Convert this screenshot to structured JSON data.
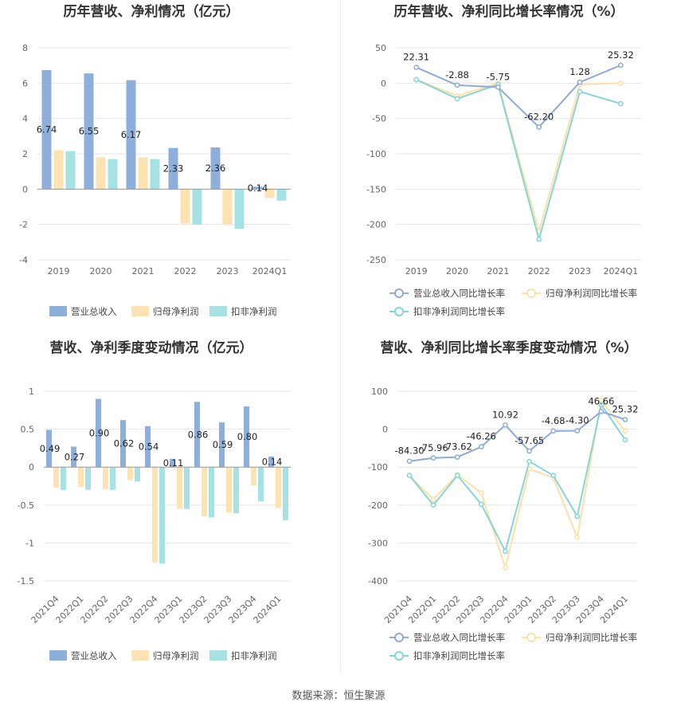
{
  "colors": {
    "revenue": "#8eafdc",
    "net_profit": "#fde2b2",
    "deducted_profit": "#a6e1e3",
    "revenue_line": "#8eaad8",
    "net_line": "#fde0a8",
    "deducted_line": "#86d5d6"
  },
  "source": "数据来源：恒生聚源",
  "chart_data": [
    {
      "type": "bar",
      "title": "历年营收、净利情况（亿元）",
      "categories": [
        "2019",
        "2020",
        "2021",
        "2022",
        "2023",
        "2024Q1"
      ],
      "ylim": [
        -4,
        8
      ],
      "yticks": [
        "8",
        "6",
        "4",
        "2",
        "0",
        "-2",
        "-4"
      ],
      "series": [
        {
          "name": "营业总收入",
          "values": [
            6.74,
            6.55,
            6.17,
            2.33,
            2.36,
            0.14
          ]
        },
        {
          "name": "归母净利润",
          "values": [
            2.2,
            1.8,
            1.8,
            -1.95,
            -2.0,
            -0.5
          ]
        },
        {
          "name": "扣非净利润",
          "values": [
            2.15,
            1.7,
            1.7,
            -2.0,
            -2.25,
            -0.65
          ]
        }
      ],
      "data_labels": [
        "6.74",
        "6.55",
        "6.17",
        "2.33",
        "2.36",
        "0.14"
      ]
    },
    {
      "type": "line",
      "title": "历年营收、净利同比增长率情况（%）",
      "categories": [
        "2019",
        "2020",
        "2021",
        "2022",
        "2023",
        "2024Q1"
      ],
      "ylim": [
        -250,
        50
      ],
      "yticks": [
        "50",
        "0",
        "-50",
        "-100",
        "-150",
        "-200",
        "-250"
      ],
      "series": [
        {
          "name": "营业总收入同比增长率",
          "values": [
            22.31,
            -2.88,
            -5.75,
            -62.2,
            1.28,
            25.32
          ]
        },
        {
          "name": "归母净利润同比增长率",
          "values": [
            5,
            -18,
            0,
            -210,
            -2,
            0
          ]
        },
        {
          "name": "扣非净利润同比增长率",
          "values": [
            5,
            -22,
            -2,
            -221,
            -12,
            -29
          ]
        }
      ],
      "data_labels": [
        "22.31",
        "-2.88",
        "-5.75",
        "-62.20",
        "1.28",
        "25.32"
      ]
    },
    {
      "type": "bar",
      "title": "营收、净利季度变动情况（亿元）",
      "categories": [
        "2021Q4",
        "2022Q1",
        "2022Q2",
        "2022Q3",
        "2022Q4",
        "2023Q1",
        "2023Q2",
        "2023Q3",
        "2023Q4",
        "2024Q1"
      ],
      "ylim": [
        -1.5,
        1
      ],
      "yticks": [
        "1",
        "0.5",
        "0",
        "-0.5",
        "-1",
        "-1.5"
      ],
      "series": [
        {
          "name": "营业总收入",
          "values": [
            0.49,
            0.27,
            0.9,
            0.62,
            0.54,
            0.11,
            0.86,
            0.59,
            0.8,
            0.14
          ]
        },
        {
          "name": "归母净利润",
          "values": [
            -0.27,
            -0.26,
            -0.29,
            -0.17,
            -1.26,
            -0.55,
            -0.65,
            -0.6,
            -0.24,
            -0.54
          ]
        },
        {
          "name": "扣非净利润",
          "values": [
            -0.3,
            -0.3,
            -0.3,
            -0.19,
            -1.27,
            -0.55,
            -0.66,
            -0.61,
            -0.45,
            -0.7
          ]
        }
      ],
      "data_labels": [
        "0.49",
        "0.27",
        "0.90",
        "0.62",
        "0.54",
        "0.11",
        "0.86",
        "0.59",
        "0.80",
        "0.14"
      ]
    },
    {
      "type": "line",
      "title": "营收、净利同比增长率季度变动情况（%）",
      "categories": [
        "2021Q4",
        "2022Q1",
        "2022Q2",
        "2022Q3",
        "2022Q4",
        "2023Q1",
        "2023Q2",
        "2023Q3",
        "2023Q4",
        "2024Q1"
      ],
      "ylim": [
        -400,
        100
      ],
      "yticks": [
        "100",
        "0",
        "-100",
        "-200",
        "-300",
        "-400"
      ],
      "series": [
        {
          "name": "营业总收入同比增长率",
          "values": [
            -84.3,
            -75.96,
            -73.62,
            -46.26,
            10.92,
            -57.65,
            -4.68,
            -4.3,
            46.66,
            25.32
          ]
        },
        {
          "name": "归母净利润同比增长率",
          "values": [
            -122,
            -185,
            -120,
            -168,
            -365,
            -105,
            -128,
            -285,
            75,
            -5
          ]
        },
        {
          "name": "扣非净利润同比增长率",
          "values": [
            -122,
            -200,
            -122,
            -198,
            -322,
            -85,
            -122,
            -230,
            65,
            -28
          ]
        }
      ],
      "data_labels": [
        "-84.30",
        "-75.96",
        "-73.62",
        "-46.26",
        "10.92",
        "-57.65",
        "-4.68",
        "-4.30",
        "46.66",
        "25.32"
      ]
    }
  ]
}
